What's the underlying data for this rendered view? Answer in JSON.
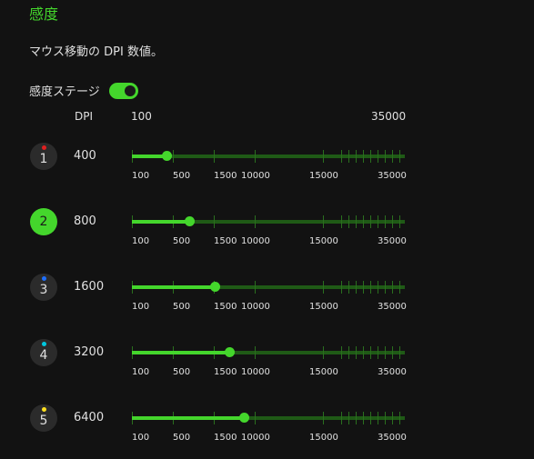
{
  "header": {
    "title": "感度",
    "description": "マウス移動の DPI 数値。"
  },
  "stage_toggle": {
    "label": "感度ステージ",
    "enabled": true
  },
  "columns": {
    "dpi": "DPI",
    "min": "100",
    "max": "35000"
  },
  "scale_labels": [
    "100",
    "500",
    "1500",
    "10000",
    "15000",
    "35000"
  ],
  "colors": {
    "accent": "#44d62c",
    "track": "#1f5a16",
    "background": "#121212"
  },
  "stages": [
    {
      "number": "1",
      "dpi": "400",
      "dpi_value": 400,
      "dot_color": "#e02020",
      "active": false
    },
    {
      "number": "2",
      "dpi": "800",
      "dpi_value": 800,
      "dot_color": "",
      "active": true
    },
    {
      "number": "3",
      "dpi": "1600",
      "dpi_value": 1600,
      "dot_color": "#1e6fff",
      "active": false
    },
    {
      "number": "4",
      "dpi": "3200",
      "dpi_value": 3200,
      "dot_color": "#00c8e0",
      "active": false
    },
    {
      "number": "5",
      "dpi": "6400",
      "dpi_value": 6400,
      "dot_color": "#ffe020",
      "active": false
    }
  ]
}
